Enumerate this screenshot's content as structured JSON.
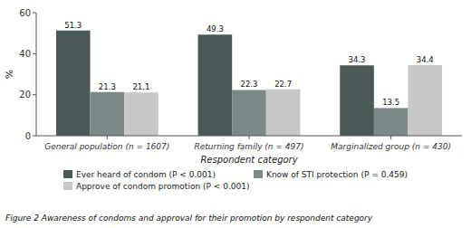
{
  "chart_data": {
    "type": "bar",
    "categories": [
      "General population (n = 1607)",
      "Returning family (n = 497)",
      "Marginalized group (n = 430)"
    ],
    "series": [
      {
        "name": "Ever heard of condom (P < 0.001)",
        "values": [
          51.3,
          49.3,
          34.3
        ],
        "color": "#4a5a58"
      },
      {
        "name": "Know of STI protection (P = 0.459)",
        "values": [
          21.3,
          22.3,
          13.5
        ],
        "color": "#7a8a88"
      },
      {
        "name": "Approve of condom promotion (P < 0.001)",
        "values": [
          21.1,
          22.7,
          34.4
        ],
        "color": "#c8c8c8"
      }
    ],
    "xlabel": "Respondent category",
    "ylabel": "%",
    "caption": "Figure 2 Awareness of condoms and approval for their promotion by respondent category",
    "ylim": [
      0,
      60
    ],
    "yticks": [
      0,
      20,
      40,
      60
    ],
    "grid": false,
    "data_labels": true,
    "legend": "bottom"
  }
}
